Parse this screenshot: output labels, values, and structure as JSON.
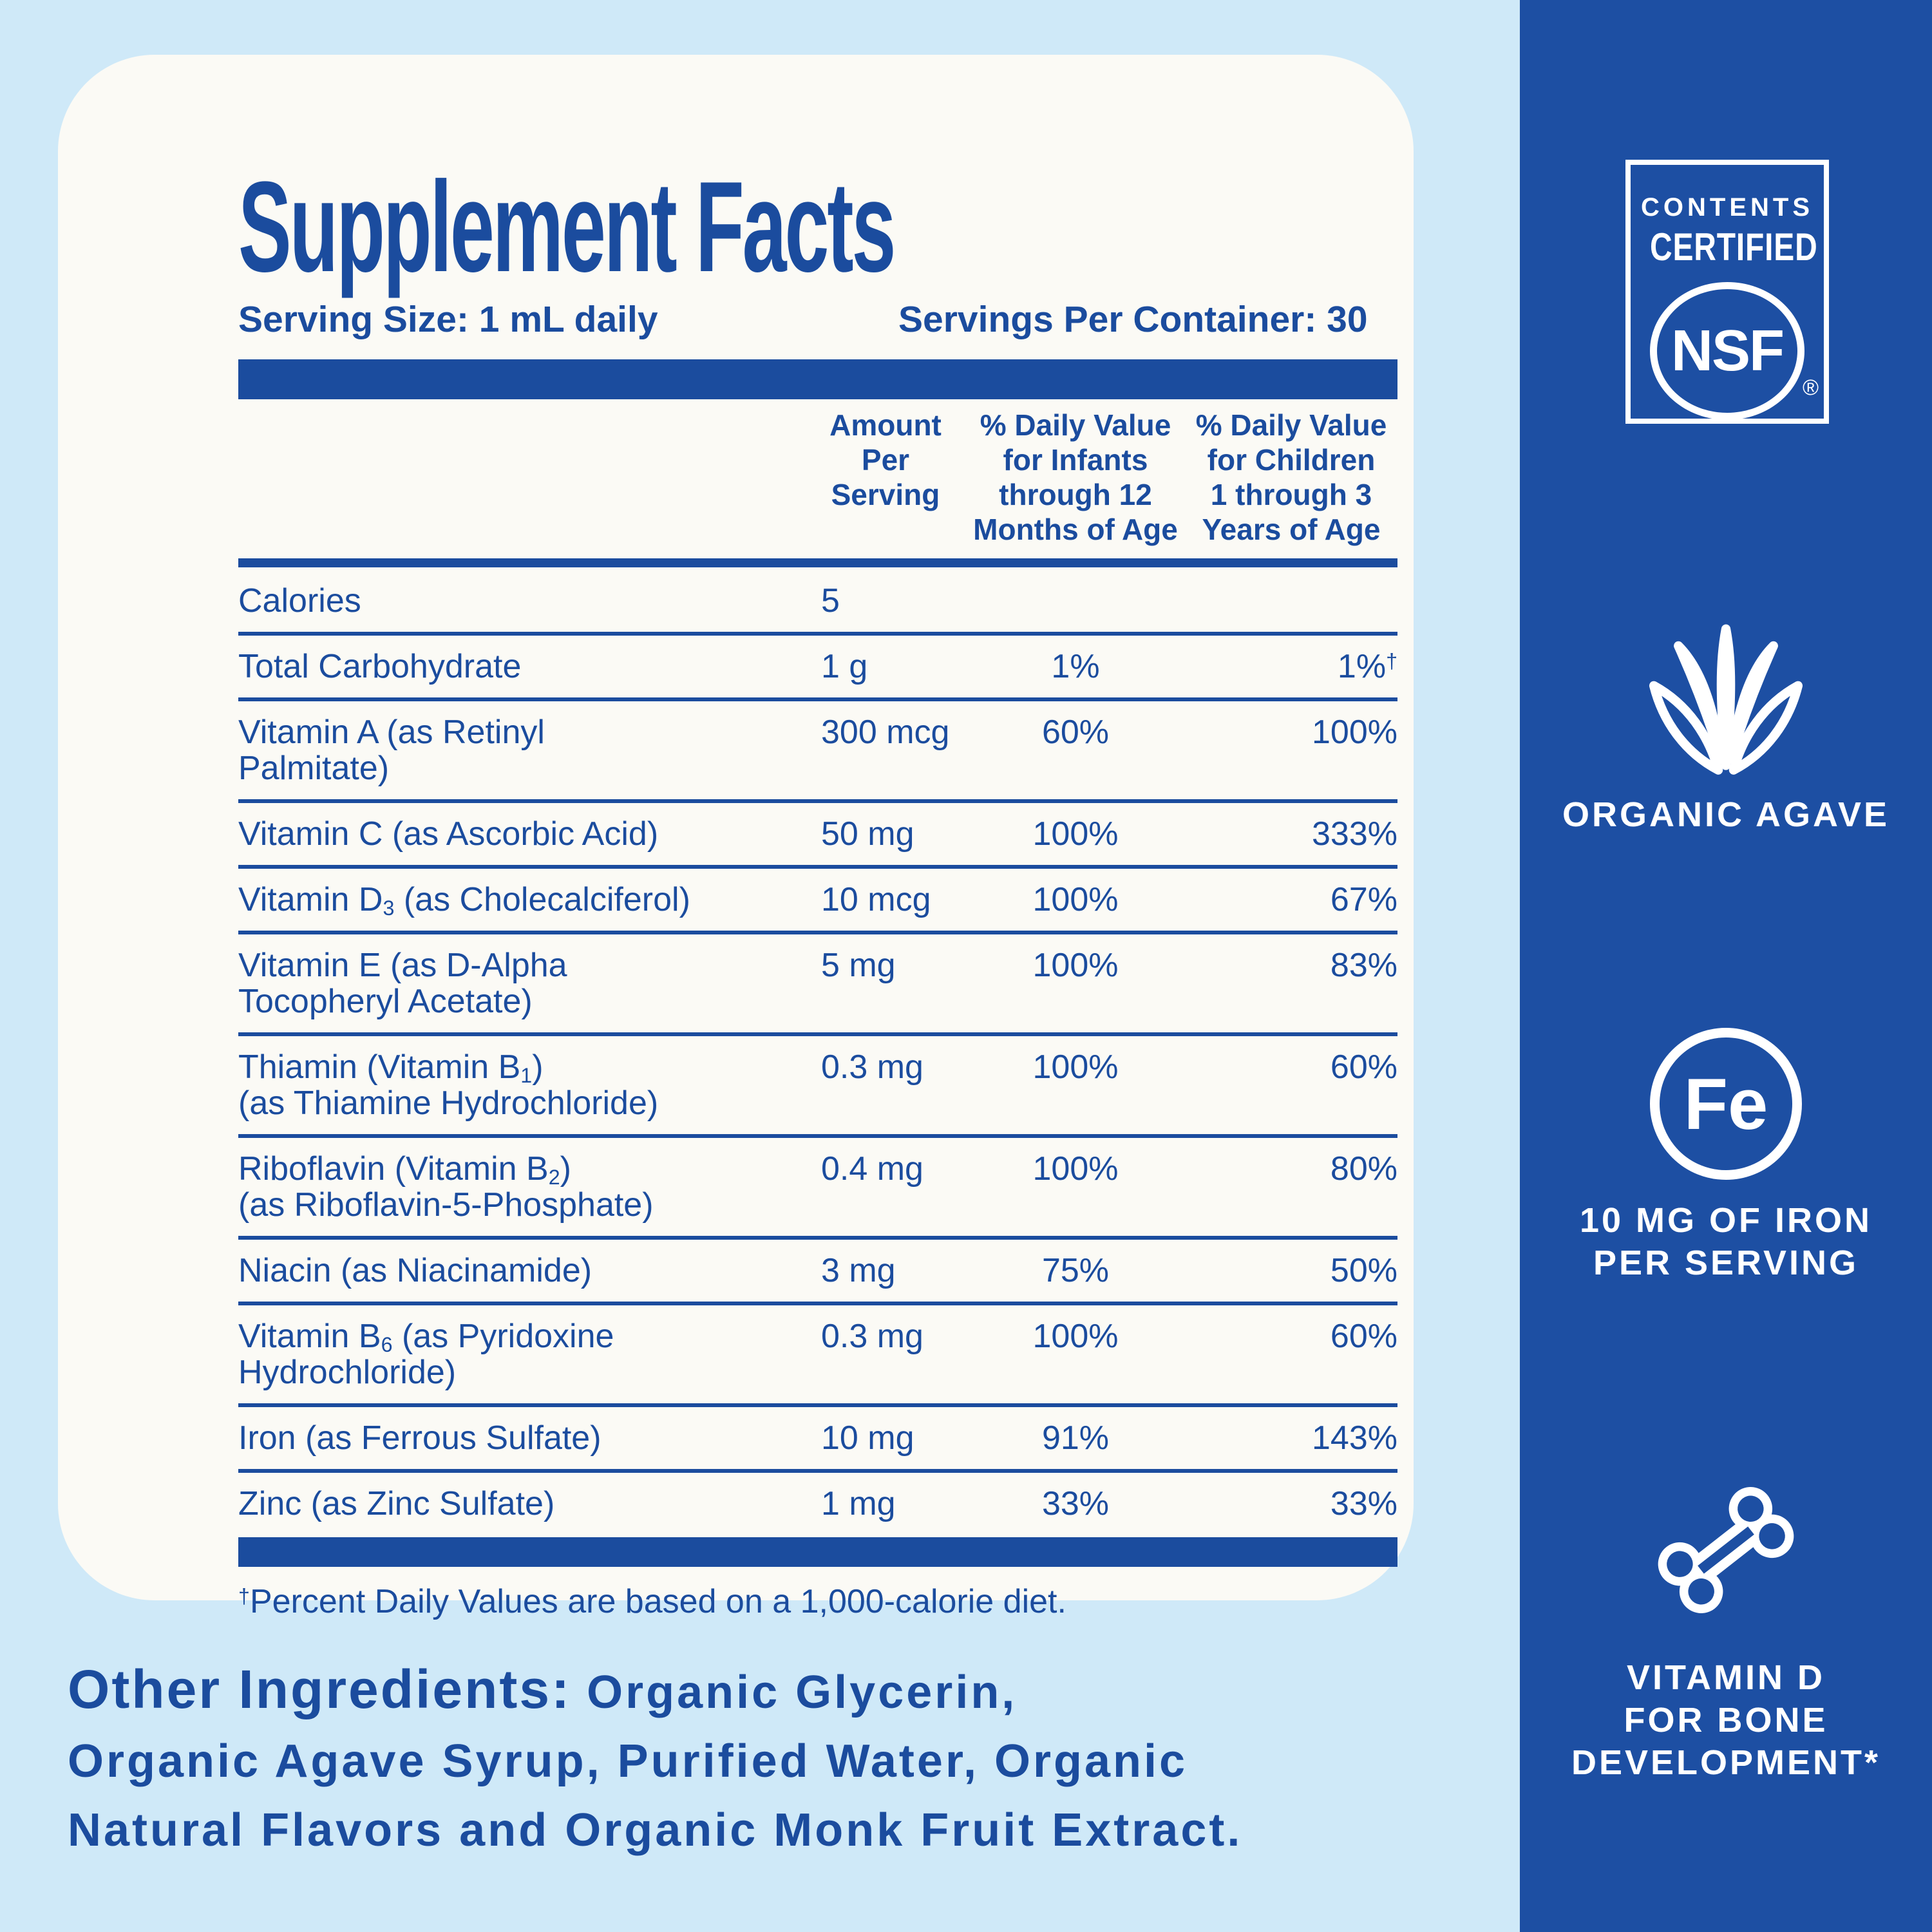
{
  "panel": {
    "title": "Supplement Facts",
    "serving_size": "Serving Size: 1 mL daily",
    "servings_per_container": "Servings Per Container: 30",
    "columns": [
      "Amount\nPer Serving",
      "% Daily Value\nfor Infants\nthrough 12\nMonths of Age",
      "% Daily Value\nfor Children\n1 through 3\nYears of Age"
    ],
    "rows": [
      {
        "name": [
          {
            "t": "Calories"
          }
        ],
        "amount": "5",
        "infants": "",
        "children": ""
      },
      {
        "name": [
          {
            "t": "Total Carbohydrate"
          }
        ],
        "amount": "1 g",
        "infants": "1%",
        "children": "1%",
        "children_sup": "†"
      },
      {
        "name": [
          {
            "t": "Vitamin A (as Retinyl\nPalmitate)"
          }
        ],
        "amount": "300 mcg",
        "infants": "60%",
        "children": "100%"
      },
      {
        "name": [
          {
            "t": "Vitamin C (as Ascorbic Acid)"
          }
        ],
        "amount": "50 mg",
        "infants": "100%",
        "children": "333%"
      },
      {
        "name": [
          {
            "t": "Vitamin D"
          },
          {
            "t": "3",
            "sub": true
          },
          {
            "t": " (as Cholecalciferol)"
          }
        ],
        "amount": "10 mcg",
        "infants": "100%",
        "children": "67%"
      },
      {
        "name": [
          {
            "t": "Vitamin E (as D-Alpha\nTocopheryl Acetate)"
          }
        ],
        "amount": "5 mg",
        "infants": "100%",
        "children": "83%"
      },
      {
        "name": [
          {
            "t": "Thiamin (Vitamin B"
          },
          {
            "t": "1",
            "sub": true
          },
          {
            "t": ")\n(as Thiamine Hydrochloride)"
          }
        ],
        "amount": "0.3 mg",
        "infants": "100%",
        "children": "60%"
      },
      {
        "name": [
          {
            "t": "Riboflavin (Vitamin B"
          },
          {
            "t": "2",
            "sub": true
          },
          {
            "t": ")\n(as Riboflavin-5-Phosphate)"
          }
        ],
        "amount": "0.4 mg",
        "infants": "100%",
        "children": "80%"
      },
      {
        "name": [
          {
            "t": "Niacin (as Niacinamide)"
          }
        ],
        "amount": "3 mg",
        "infants": "75%",
        "children": "50%"
      },
      {
        "name": [
          {
            "t": "Vitamin B"
          },
          {
            "t": "6",
            "sub": true
          },
          {
            "t": " (as Pyridoxine\nHydrochloride)"
          }
        ],
        "amount": "0.3 mg",
        "infants": "100%",
        "children": "60%"
      },
      {
        "name": [
          {
            "t": "Iron (as Ferrous Sulfate)"
          }
        ],
        "amount": "10 mg",
        "infants": "91%",
        "children": "143%"
      },
      {
        "name": [
          {
            "t": "Zinc (as Zinc Sulfate)"
          }
        ],
        "amount": "1 mg",
        "infants": "33%",
        "children": "33%"
      }
    ],
    "footnote_sup": "†",
    "footnote": "Percent Daily Values are based on a 1,000-calorie diet."
  },
  "other_ingredients": {
    "label": "Other Ingredients:",
    "line1_rest": " Organic Glycerin,",
    "line2": "Organic Agave Syrup, Purified Water, Organic",
    "line3": "Natural Flavors and Organic Monk Fruit Extract."
  },
  "sidebar": {
    "nsf": {
      "line1": "CONTENTS",
      "line2": "CERTIFIED",
      "logo": "NSF",
      "reg": "®"
    },
    "agave": {
      "label": "ORGANIC AGAVE"
    },
    "iron": {
      "symbol": "Fe",
      "label_line1": "10 MG OF IRON",
      "label_line2": "PER SERVING"
    },
    "bone": {
      "label_line1": "VITAMIN D",
      "label_line2": "FOR BONE",
      "label_line3": "DEVELOPMENT*"
    }
  },
  "colors": {
    "background": "#cfe9f8",
    "panel": "#fbfaf5",
    "brand_blue": "#1b4c9e",
    "band_blue": "#1d4fa3",
    "white": "#ffffff"
  }
}
